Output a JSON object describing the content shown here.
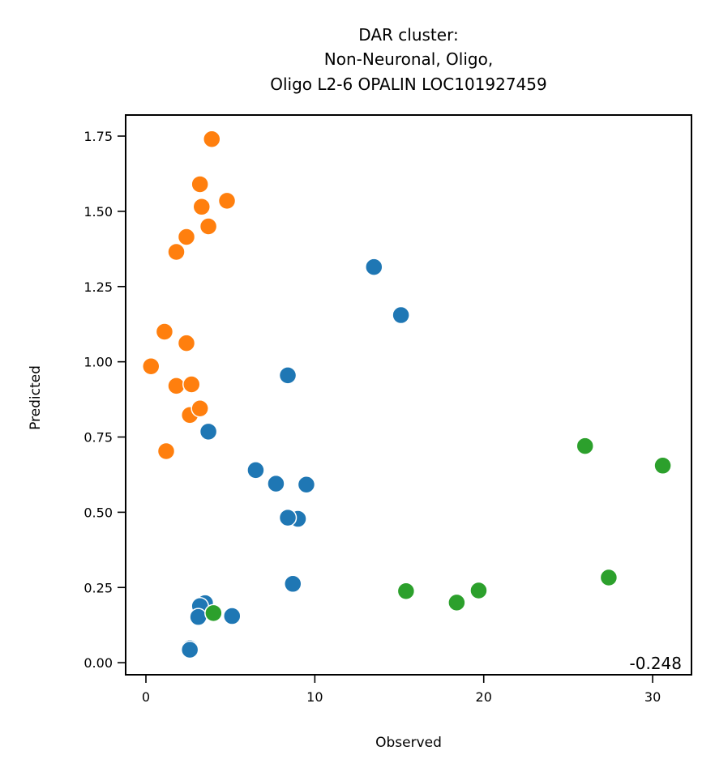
{
  "chart_data": {
    "type": "scatter",
    "title_lines": [
      "DAR cluster:",
      "Non-Neuronal, Oligo,",
      "Oligo L2-6 OPALIN LOC101927459"
    ],
    "xlabel": "Observed",
    "ylabel": "Predicted",
    "xlim": [
      -1.2,
      32.3
    ],
    "ylim": [
      -0.04,
      1.82
    ],
    "xticks": [
      0,
      10,
      20,
      30
    ],
    "xtick_labels": [
      "0",
      "10",
      "20",
      "30"
    ],
    "yticks": [
      0.0,
      0.25,
      0.5,
      0.75,
      1.0,
      1.25,
      1.5,
      1.75
    ],
    "ytick_labels": [
      "0.00",
      "0.25",
      "0.50",
      "0.75",
      "1.00",
      "1.25",
      "1.50",
      "1.75"
    ],
    "annotation": "-0.248",
    "grid": false,
    "legend": "none",
    "series": [
      {
        "color": "#ff7f0e",
        "points": [
          [
            3.9,
            1.74
          ],
          [
            3.2,
            1.59
          ],
          [
            4.8,
            1.535
          ],
          [
            3.3,
            1.515
          ],
          [
            3.7,
            1.45
          ],
          [
            2.4,
            1.415
          ],
          [
            1.8,
            1.365
          ],
          [
            1.1,
            1.1
          ],
          [
            2.4,
            1.062
          ],
          [
            0.3,
            0.985
          ],
          [
            1.8,
            0.92
          ],
          [
            2.7,
            0.925
          ],
          [
            2.6,
            0.823
          ],
          [
            3.2,
            0.845
          ],
          [
            1.2,
            0.703
          ]
        ]
      },
      {
        "color": "#1f77b4",
        "points": [
          [
            13.5,
            1.315
          ],
          [
            15.1,
            1.155
          ],
          [
            8.4,
            0.955
          ],
          [
            3.7,
            0.768
          ],
          [
            6.5,
            0.64
          ],
          [
            7.7,
            0.595
          ],
          [
            9.5,
            0.592
          ],
          [
            9.0,
            0.478
          ],
          [
            8.4,
            0.482
          ],
          [
            8.7,
            0.262
          ],
          [
            3.5,
            0.198
          ],
          [
            3.2,
            0.188
          ],
          [
            3.1,
            0.152
          ],
          [
            5.1,
            0.155
          ],
          [
            2.6,
            0.048
          ],
          [
            2.6,
            0.043
          ]
        ]
      },
      {
        "color": "#2ca02c",
        "points": [
          [
            26.0,
            0.72
          ],
          [
            30.6,
            0.655
          ],
          [
            27.4,
            0.283
          ],
          [
            15.4,
            0.238
          ],
          [
            19.7,
            0.24
          ],
          [
            18.4,
            0.2
          ],
          [
            4.0,
            0.165
          ]
        ]
      }
    ]
  }
}
